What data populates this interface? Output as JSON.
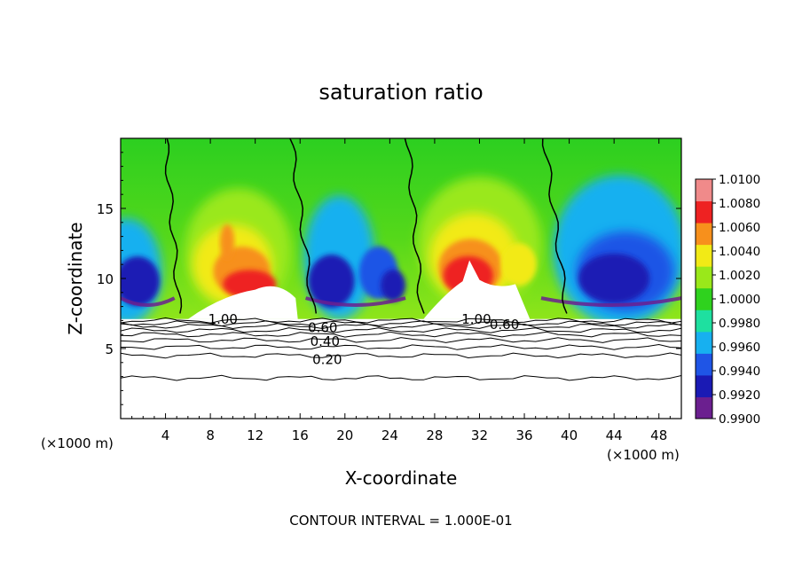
{
  "chart_data": {
    "type": "heatmap",
    "title": "saturation ratio",
    "xlabel": "X-coordinate",
    "ylabel": "Z-coordinate",
    "x_unit_left": "(×1000 m)",
    "x_unit_right": "(×1000 m)",
    "xlim": [
      0,
      50
    ],
    "ylim": [
      0,
      20
    ],
    "xticks": [
      4,
      8,
      12,
      16,
      20,
      24,
      28,
      32,
      36,
      40,
      44,
      48
    ],
    "xtick_labels": [
      "4",
      "8",
      "12",
      "16",
      "20",
      "24",
      "28",
      "32",
      "36",
      "40",
      "44",
      "48"
    ],
    "yticks": [
      5,
      10,
      15
    ],
    "ytick_labels": [
      "5",
      "10",
      "15"
    ],
    "colorbar": {
      "levels": [
        0.99,
        0.992,
        0.994,
        0.996,
        0.998,
        1.0,
        1.002,
        1.004,
        1.006,
        1.008,
        1.01
      ],
      "labels": [
        "0.9900",
        "0.9920",
        "0.9940",
        "0.9960",
        "0.9980",
        "1.0000",
        "1.0020",
        "1.0040",
        "1.0060",
        "1.0080",
        "1.0100"
      ],
      "colors": [
        "#6b1f8f",
        "#1a1ab4",
        "#1f55e6",
        "#17b0f0",
        "#1ee0a0",
        "#2fd21e",
        "#9ae81a",
        "#f2ea16",
        "#f7901c",
        "#ee2222",
        "#f08a8a"
      ]
    },
    "contour_lines": [
      {
        "label": "0.20",
        "z": 4.5
      },
      {
        "label": "0.40",
        "z": 5.6
      },
      {
        "label": "0.60",
        "z": 6.3
      },
      {
        "label": "1.00",
        "z": 7.0
      }
    ],
    "contour_labels": [
      {
        "text": "1.00",
        "x": 7.8,
        "z": 7.1
      },
      {
        "text": "0.60",
        "x": 16.7,
        "z": 6.5
      },
      {
        "text": "0.40",
        "x": 16.9,
        "z": 5.5
      },
      {
        "text": "0.20",
        "x": 17.1,
        "z": 4.2
      },
      {
        "text": "1.00",
        "x": 30.4,
        "z": 7.1
      },
      {
        "text": "0.60",
        "x": 32.9,
        "z": 6.7
      }
    ],
    "saturation_contour_x": [
      4.0,
      15.2,
      25.6,
      37.8
    ],
    "grid": false,
    "legend": "right",
    "footer": "CONTOUR INTERVAL = 1.000E-01"
  }
}
